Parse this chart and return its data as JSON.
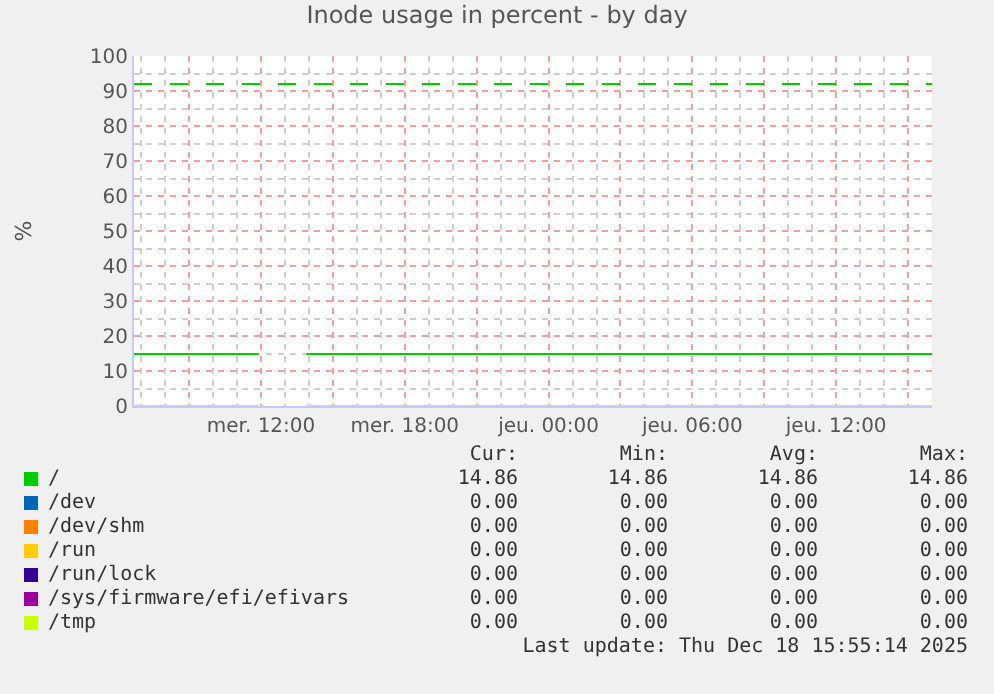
{
  "chart_data": {
    "type": "line",
    "title": "Inode usage in percent - by day",
    "ylabel": "%",
    "xlim": [
      "2025-12-17T06:42",
      "2025-12-18T16:00"
    ],
    "xticks": [
      {
        "value": "2025-12-17T09:00",
        "label": null
      },
      {
        "value": "2025-12-17T12:00",
        "label": "mer. 12:00"
      },
      {
        "value": "2025-12-17T15:00",
        "label": null
      },
      {
        "value": "2025-12-17T18:00",
        "label": "mer. 18:00"
      },
      {
        "value": "2025-12-17T21:00",
        "label": null
      },
      {
        "value": "2025-12-18T00:00",
        "label": "jeu. 00:00"
      },
      {
        "value": "2025-12-18T03:00",
        "label": null
      },
      {
        "value": "2025-12-18T06:00",
        "label": "jeu. 06:00"
      },
      {
        "value": "2025-12-18T09:00",
        "label": null
      },
      {
        "value": "2025-12-18T12:00",
        "label": "jeu. 12:00"
      },
      {
        "value": "2025-12-18T15:00",
        "label": null
      }
    ],
    "ylim": [
      0,
      100
    ],
    "yticks": [
      0,
      10,
      20,
      30,
      40,
      50,
      60,
      70,
      80,
      90,
      100
    ],
    "grid": true,
    "legend": "bottom",
    "marker": "none",
    "line_style": "solid",
    "x": [
      "2025-12-17T06:42",
      "2025-12-17T11:54",
      "2025-12-17T12:00",
      "2025-12-17T13:54",
      "2025-12-18T16:00"
    ],
    "series": [
      {
        "name": "/",
        "color": "#00cc00",
        "values": [
          14.86,
          14.86,
          null,
          14.86,
          14.86
        ]
      },
      {
        "name": "/dev",
        "color": "#0066b3",
        "values": [
          null,
          null,
          null,
          null,
          null
        ]
      },
      {
        "name": "/dev/shm",
        "color": "#ff8000",
        "values": [
          null,
          null,
          null,
          null,
          null
        ]
      },
      {
        "name": "/run",
        "color": "#ffcc00",
        "values": [
          null,
          null,
          null,
          null,
          null
        ]
      },
      {
        "name": "/run/lock",
        "color": "#330099",
        "values": [
          null,
          null,
          null,
          null,
          null
        ]
      },
      {
        "name": "/sys/firmware/efi/efivars",
        "color": "#990099",
        "values": [
          null,
          null,
          null,
          null,
          null
        ]
      },
      {
        "name": "/tmp",
        "color": "#ccff00",
        "values": [
          0,
          0,
          null,
          0,
          0
        ]
      }
    ],
    "ref_lines": [
      {
        "axis": "y",
        "value": 92,
        "color": "#00cc00",
        "line_style": "dashed"
      }
    ],
    "annotations": [
      "Cur:",
      "Min:",
      "Avg:",
      "Max:",
      "14.86",
      "14.86",
      "14.86",
      "14.86",
      "0.00",
      "0.00",
      "0.00",
      "0.00",
      "0.00",
      "0.00",
      "0.00",
      "0.00",
      "0.00",
      "0.00",
      "0.00",
      "0.00",
      "0.00",
      "0.00",
      "0.00",
      "0.00",
      "0.00",
      "0.00",
      "0.00",
      "0.00",
      "0.00",
      "0.00",
      "0.00",
      "0.00",
      "Last update: Thu Dec 18 15:55:14 2025"
    ]
  }
}
